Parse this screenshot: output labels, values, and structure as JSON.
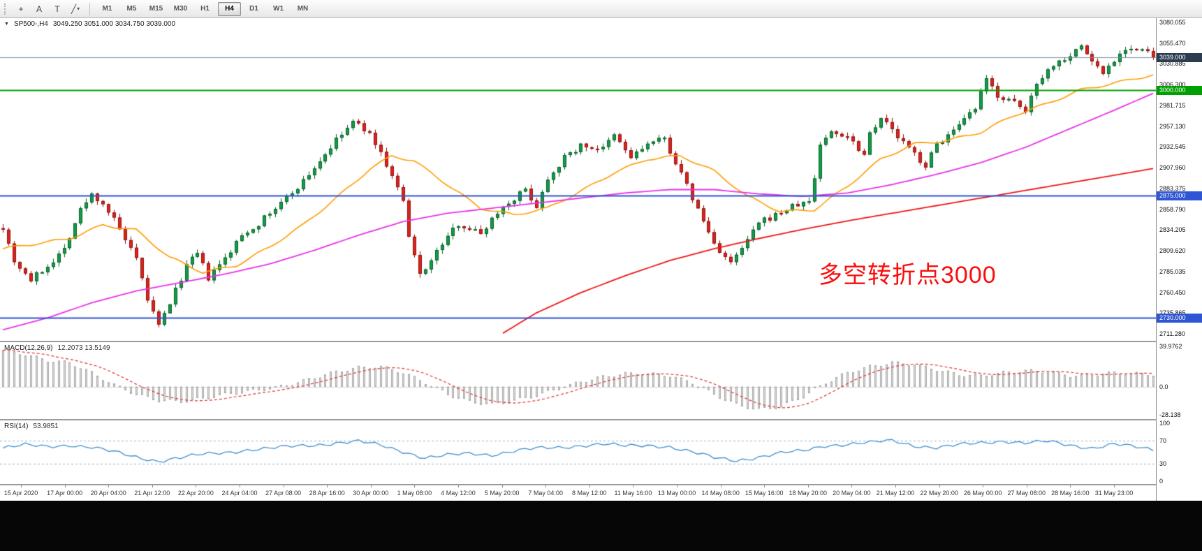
{
  "toolbar": {
    "tools": [
      {
        "name": "crosshair-tool",
        "glyph": "+"
      },
      {
        "name": "text-label-tool",
        "glyph": "A"
      },
      {
        "name": "text-tool",
        "glyph": "T"
      },
      {
        "name": "trendline-tool",
        "glyph": "╱",
        "caret": "▾"
      }
    ],
    "timeframes": [
      {
        "label": "M1"
      },
      {
        "label": "M5"
      },
      {
        "label": "M15"
      },
      {
        "label": "M30"
      },
      {
        "label": "H1"
      },
      {
        "label": "H4",
        "active": true
      },
      {
        "label": "D1"
      },
      {
        "label": "W1"
      },
      {
        "label": "MN"
      }
    ]
  },
  "price_pane": {
    "header": {
      "dropdown_icon": "▼",
      "symbol": "SP500-,H4",
      "ohlc": "3049.250 3051.000 3034.750 3039.000"
    },
    "annotation": {
      "text": "多空转折点3000",
      "color": "#fb0d0d"
    },
    "axis_labels": [
      "3080.055",
      "3055.470",
      "3030.885",
      "3006.300",
      "2981.715",
      "2957.130",
      "2932.545",
      "2907.960",
      "2883.375",
      "2858.790",
      "2834.205",
      "2809.620",
      "2785.035",
      "2760.450",
      "2735.865",
      "2711.280"
    ],
    "levels": [
      {
        "label": "3039.000",
        "value": 3039.0,
        "color": "#2b3d4f",
        "line_color": "#7a8fa3",
        "line_width": 1,
        "current": true
      },
      {
        "label": "3000.000",
        "value": 3000.0,
        "color": "#00a000",
        "line_color": "#00a000",
        "line_width": 2
      },
      {
        "label": "2875.000",
        "value": 2875.0,
        "color": "#2e55d4",
        "line_color": "#2e55d4",
        "line_width": 2
      },
      {
        "label": "2730.000",
        "value": 2730.0,
        "color": "#2e55d4",
        "line_color": "#2e55d4",
        "line_width": 2
      }
    ]
  },
  "macd_pane": {
    "header": {
      "name": "MACD(12,26,9)",
      "values": "12.2073 13.5149"
    },
    "axis_labels": [
      "39.9762",
      "0.0",
      "-28.138"
    ]
  },
  "rsi_pane": {
    "header": {
      "name": "RSI(14)",
      "values": "53.9851"
    },
    "axis_labels": [
      "100",
      "70",
      "30",
      "0"
    ]
  },
  "time_axis": {
    "labels": [
      "15 Apr 2020",
      "17 Apr 00:00",
      "20 Apr 04:00",
      "21 Apr 12:00",
      "22 Apr 20:00",
      "24 Apr 04:00",
      "27 Apr 08:00",
      "28 Apr 16:00",
      "30 Apr 00:00",
      "1 May 08:00",
      "4 May 12:00",
      "5 May 20:00",
      "7 May 04:00",
      "8 May 12:00",
      "11 May 16:00",
      "13 May 00:00",
      "14 May 08:00",
      "15 May 16:00",
      "18 May 20:00",
      "20 May 04:00",
      "21 May 12:00",
      "22 May 20:00",
      "26 May 00:00",
      "27 May 08:00",
      "28 May 16:00",
      "31 May 23:00"
    ]
  },
  "chart_data": {
    "type": "candlestick",
    "title": "SP500-,H4",
    "symbol": "SP500-",
    "timeframe": "H4",
    "bars": 208,
    "final_close": 3039.0,
    "price_range": {
      "min": 2703,
      "max": 3085
    },
    "macd_range": {
      "min": -32,
      "max": 44
    },
    "rsi_range": {
      "min": -5,
      "max": 105
    },
    "close_anchors": [
      [
        0,
        2838
      ],
      [
        2,
        2798
      ],
      [
        5,
        2775
      ],
      [
        8,
        2792
      ],
      [
        11,
        2812
      ],
      [
        14,
        2858
      ],
      [
        16,
        2876
      ],
      [
        18,
        2866
      ],
      [
        20,
        2846
      ],
      [
        22,
        2822
      ],
      [
        24,
        2798
      ],
      [
        26,
        2752
      ],
      [
        28,
        2720
      ],
      [
        30,
        2748
      ],
      [
        33,
        2792
      ],
      [
        35,
        2806
      ],
      [
        37,
        2777
      ],
      [
        40,
        2800
      ],
      [
        43,
        2828
      ],
      [
        46,
        2842
      ],
      [
        50,
        2866
      ],
      [
        54,
        2892
      ],
      [
        57,
        2916
      ],
      [
        60,
        2940
      ],
      [
        63,
        2962
      ],
      [
        65,
        2954
      ],
      [
        67,
        2938
      ],
      [
        70,
        2898
      ],
      [
        72,
        2868
      ],
      [
        73,
        2824
      ],
      [
        75,
        2782
      ],
      [
        77,
        2798
      ],
      [
        79,
        2818
      ],
      [
        82,
        2842
      ],
      [
        86,
        2830
      ],
      [
        89,
        2856
      ],
      [
        92,
        2872
      ],
      [
        94,
        2882
      ],
      [
        96,
        2862
      ],
      [
        98,
        2896
      ],
      [
        101,
        2920
      ],
      [
        104,
        2934
      ],
      [
        108,
        2930
      ],
      [
        110,
        2946
      ],
      [
        113,
        2920
      ],
      [
        116,
        2936
      ],
      [
        119,
        2942
      ],
      [
        122,
        2900
      ],
      [
        125,
        2858
      ],
      [
        128,
        2818
      ],
      [
        131,
        2794
      ],
      [
        133,
        2812
      ],
      [
        136,
        2842
      ],
      [
        139,
        2852
      ],
      [
        142,
        2862
      ],
      [
        145,
        2868
      ],
      [
        146,
        2896
      ],
      [
        147,
        2936
      ],
      [
        149,
        2950
      ],
      [
        152,
        2946
      ],
      [
        155,
        2924
      ],
      [
        156,
        2950
      ],
      [
        158,
        2968
      ],
      [
        161,
        2944
      ],
      [
        164,
        2924
      ],
      [
        166,
        2910
      ],
      [
        168,
        2936
      ],
      [
        172,
        2956
      ],
      [
        175,
        2978
      ],
      [
        177,
        3012
      ],
      [
        179,
        2994
      ],
      [
        182,
        2984
      ],
      [
        184,
        2974
      ],
      [
        186,
        3010
      ],
      [
        189,
        3030
      ],
      [
        192,
        3042
      ],
      [
        194,
        3052
      ],
      [
        196,
        3034
      ],
      [
        198,
        3020
      ],
      [
        200,
        3036
      ],
      [
        202,
        3050
      ],
      [
        204,
        3048
      ],
      [
        206,
        3044
      ],
      [
        207,
        3039
      ]
    ],
    "ma_fast_anchors": [
      [
        0,
        2812
      ],
      [
        6,
        2818
      ],
      [
        12,
        2824
      ],
      [
        18,
        2840
      ],
      [
        24,
        2834
      ],
      [
        30,
        2802
      ],
      [
        36,
        2784
      ],
      [
        42,
        2792
      ],
      [
        48,
        2814
      ],
      [
        54,
        2840
      ],
      [
        60,
        2872
      ],
      [
        66,
        2906
      ],
      [
        70,
        2922
      ],
      [
        74,
        2916
      ],
      [
        80,
        2888
      ],
      [
        86,
        2860
      ],
      [
        92,
        2852
      ],
      [
        98,
        2860
      ],
      [
        104,
        2880
      ],
      [
        110,
        2902
      ],
      [
        116,
        2918
      ],
      [
        122,
        2922
      ],
      [
        128,
        2904
      ],
      [
        134,
        2874
      ],
      [
        140,
        2856
      ],
      [
        146,
        2858
      ],
      [
        152,
        2886
      ],
      [
        158,
        2918
      ],
      [
        164,
        2936
      ],
      [
        170,
        2940
      ],
      [
        176,
        2950
      ],
      [
        182,
        2970
      ],
      [
        188,
        2984
      ],
      [
        194,
        3000
      ],
      [
        200,
        3008
      ],
      [
        207,
        3018
      ]
    ],
    "ma_mid_anchors": [
      [
        0,
        2716
      ],
      [
        8,
        2730
      ],
      [
        16,
        2748
      ],
      [
        24,
        2762
      ],
      [
        32,
        2772
      ],
      [
        40,
        2782
      ],
      [
        48,
        2794
      ],
      [
        56,
        2810
      ],
      [
        64,
        2828
      ],
      [
        72,
        2844
      ],
      [
        80,
        2854
      ],
      [
        88,
        2860
      ],
      [
        96,
        2866
      ],
      [
        104,
        2872
      ],
      [
        112,
        2878
      ],
      [
        120,
        2882
      ],
      [
        128,
        2882
      ],
      [
        136,
        2877
      ],
      [
        144,
        2874
      ],
      [
        152,
        2878
      ],
      [
        160,
        2888
      ],
      [
        168,
        2900
      ],
      [
        176,
        2914
      ],
      [
        184,
        2932
      ],
      [
        192,
        2954
      ],
      [
        200,
        2976
      ],
      [
        207,
        2996
      ]
    ],
    "ma_slow_anchors": [
      [
        90,
        2712
      ],
      [
        96,
        2736
      ],
      [
        104,
        2760
      ],
      [
        112,
        2780
      ],
      [
        120,
        2798
      ],
      [
        128,
        2812
      ],
      [
        136,
        2824
      ],
      [
        144,
        2835
      ],
      [
        152,
        2845
      ],
      [
        160,
        2854
      ],
      [
        168,
        2863
      ],
      [
        176,
        2872
      ],
      [
        184,
        2881
      ],
      [
        192,
        2890
      ],
      [
        200,
        2899
      ],
      [
        207,
        2907
      ]
    ],
    "macd_anchors": [
      [
        0,
        36
      ],
      [
        4,
        32
      ],
      [
        8,
        26
      ],
      [
        12,
        24
      ],
      [
        16,
        14
      ],
      [
        20,
        2
      ],
      [
        24,
        -8
      ],
      [
        28,
        -14
      ],
      [
        32,
        -15
      ],
      [
        36,
        -12
      ],
      [
        40,
        -8
      ],
      [
        44,
        -5
      ],
      [
        48,
        -2
      ],
      [
        52,
        3
      ],
      [
        56,
        9
      ],
      [
        60,
        15
      ],
      [
        64,
        19
      ],
      [
        68,
        20
      ],
      [
        72,
        14
      ],
      [
        76,
        4
      ],
      [
        80,
        -8
      ],
      [
        84,
        -15
      ],
      [
        88,
        -18
      ],
      [
        92,
        -14
      ],
      [
        96,
        -9
      ],
      [
        100,
        -2
      ],
      [
        104,
        5
      ],
      [
        108,
        10
      ],
      [
        112,
        13
      ],
      [
        116,
        13
      ],
      [
        120,
        11
      ],
      [
        124,
        4
      ],
      [
        128,
        -8
      ],
      [
        132,
        -18
      ],
      [
        136,
        -23
      ],
      [
        140,
        -20
      ],
      [
        144,
        -10
      ],
      [
        148,
        4
      ],
      [
        152,
        14
      ],
      [
        156,
        20
      ],
      [
        160,
        24
      ],
      [
        164,
        22
      ],
      [
        168,
        17
      ],
      [
        172,
        12
      ],
      [
        176,
        11
      ],
      [
        180,
        14
      ],
      [
        184,
        16
      ],
      [
        188,
        15
      ],
      [
        192,
        11
      ],
      [
        196,
        12
      ],
      [
        200,
        14
      ],
      [
        204,
        13
      ],
      [
        207,
        12.2
      ]
    ],
    "rsi_anchors": [
      [
        0,
        57
      ],
      [
        4,
        62
      ],
      [
        8,
        60
      ],
      [
        12,
        63
      ],
      [
        16,
        58
      ],
      [
        20,
        50
      ],
      [
        24,
        42
      ],
      [
        28,
        35
      ],
      [
        32,
        40
      ],
      [
        36,
        46
      ],
      [
        40,
        50
      ],
      [
        44,
        54
      ],
      [
        48,
        56
      ],
      [
        52,
        60
      ],
      [
        56,
        63
      ],
      [
        60,
        66
      ],
      [
        64,
        68
      ],
      [
        68,
        62
      ],
      [
        72,
        52
      ],
      [
        76,
        40
      ],
      [
        80,
        44
      ],
      [
        84,
        48
      ],
      [
        88,
        46
      ],
      [
        92,
        52
      ],
      [
        96,
        56
      ],
      [
        100,
        58
      ],
      [
        104,
        62
      ],
      [
        108,
        64
      ],
      [
        112,
        60
      ],
      [
        116,
        62
      ],
      [
        120,
        60
      ],
      [
        124,
        50
      ],
      [
        128,
        40
      ],
      [
        132,
        36
      ],
      [
        136,
        42
      ],
      [
        140,
        48
      ],
      [
        144,
        52
      ],
      [
        148,
        62
      ],
      [
        152,
        64
      ],
      [
        156,
        66
      ],
      [
        160,
        70
      ],
      [
        164,
        62
      ],
      [
        168,
        58
      ],
      [
        172,
        62
      ],
      [
        176,
        66
      ],
      [
        180,
        70
      ],
      [
        184,
        66
      ],
      [
        188,
        68
      ],
      [
        192,
        62
      ],
      [
        196,
        58
      ],
      [
        200,
        64
      ],
      [
        204,
        58
      ],
      [
        207,
        54
      ]
    ],
    "colors": {
      "bull": "#119e47",
      "bull_border": "#0a5f2a",
      "bear": "#df221c",
      "bear_border": "#8e120e",
      "ma_fast": "#ff9c00",
      "ma_mid": "#e832e8",
      "ma_slow": "#f01414",
      "macd_hist_fill": "#dcdcdc",
      "macd_hist_border": "#a8a8a8",
      "macd_signal": "#e03030",
      "rsi_line": "#3d8fd1",
      "rsi_levels": "#8fb0d6"
    }
  }
}
